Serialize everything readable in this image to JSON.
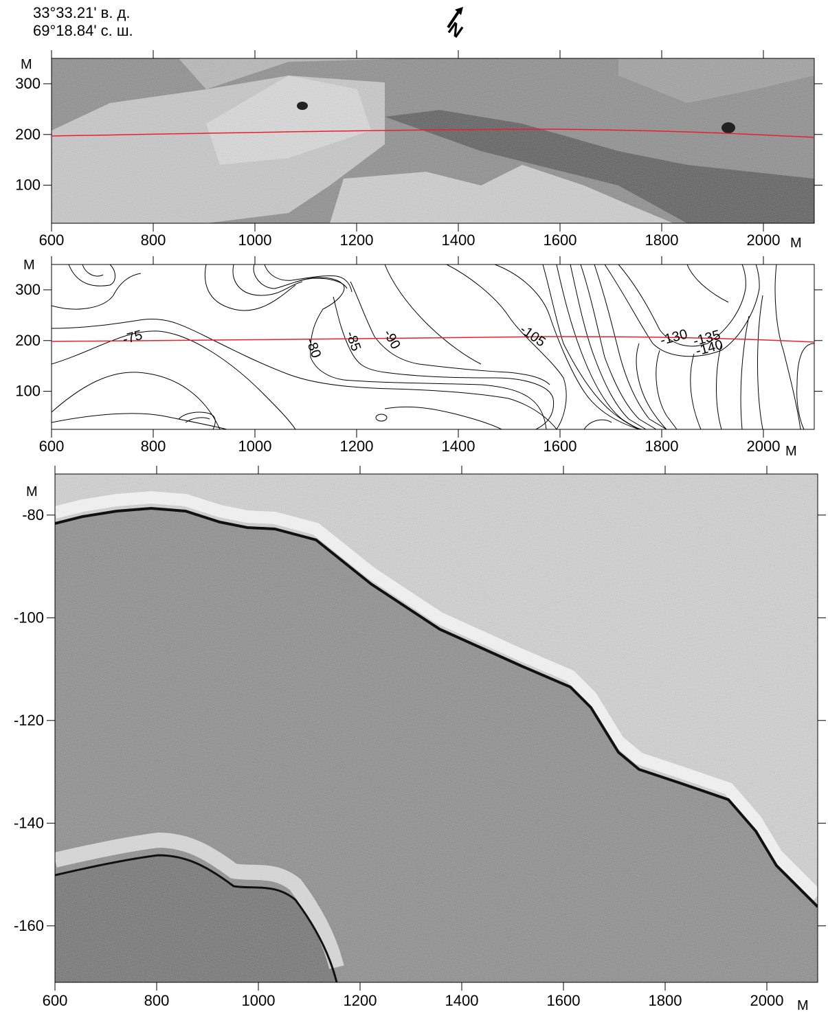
{
  "header": {
    "lon": "33°33.21' в. д.",
    "lat": "69°18.84' с. ш.",
    "north_label": "N"
  },
  "panels": {
    "sonar": {
      "y_unit": "М",
      "x_unit": "М",
      "y_ticks": [
        "300",
        "200",
        "100"
      ],
      "y_tick_values": [
        300,
        200,
        100
      ],
      "x_ticks": [
        "600",
        "800",
        "1000",
        "1200",
        "1400",
        "1600",
        "1800",
        "2000"
      ],
      "x_tick_values": [
        600,
        800,
        1000,
        1200,
        1400,
        1600,
        1800,
        2000
      ],
      "x_range": [
        600,
        2100
      ],
      "y_range": [
        25,
        350
      ]
    },
    "bathymetry": {
      "y_unit": "М",
      "x_unit": "М",
      "y_ticks": [
        "300",
        "200",
        "100"
      ],
      "y_tick_values": [
        300,
        200,
        100
      ],
      "x_ticks": [
        "600",
        "800",
        "1000",
        "1200",
        "1400",
        "1600",
        "1800",
        "2000"
      ],
      "x_tick_values": [
        600,
        800,
        1000,
        1200,
        1400,
        1600,
        1800,
        2000
      ],
      "contour_labels": [
        "-75",
        "-80",
        "-85",
        "-90",
        "-105",
        "-130",
        "-135",
        "-140"
      ]
    },
    "profile": {
      "y_unit": "М",
      "x_unit": "М",
      "y_ticks": [
        "-80",
        "-100",
        "-120",
        "-140",
        "-160"
      ],
      "y_tick_values": [
        -80,
        -100,
        -120,
        -140,
        -160
      ],
      "x_ticks": [
        "600",
        "800",
        "1000",
        "1200",
        "1400",
        "1600",
        "1800",
        "2000"
      ],
      "x_tick_values": [
        600,
        800,
        1000,
        1200,
        1400,
        1600,
        1800,
        2000
      ],
      "x_range": [
        600,
        2100
      ],
      "y_range": [
        -72,
        -171
      ]
    }
  },
  "colors": {
    "track_line": "#e8202a",
    "seabed_reflector": "#111111",
    "water_column": "#d4d4d4",
    "sediment": "#8a8a8a"
  }
}
